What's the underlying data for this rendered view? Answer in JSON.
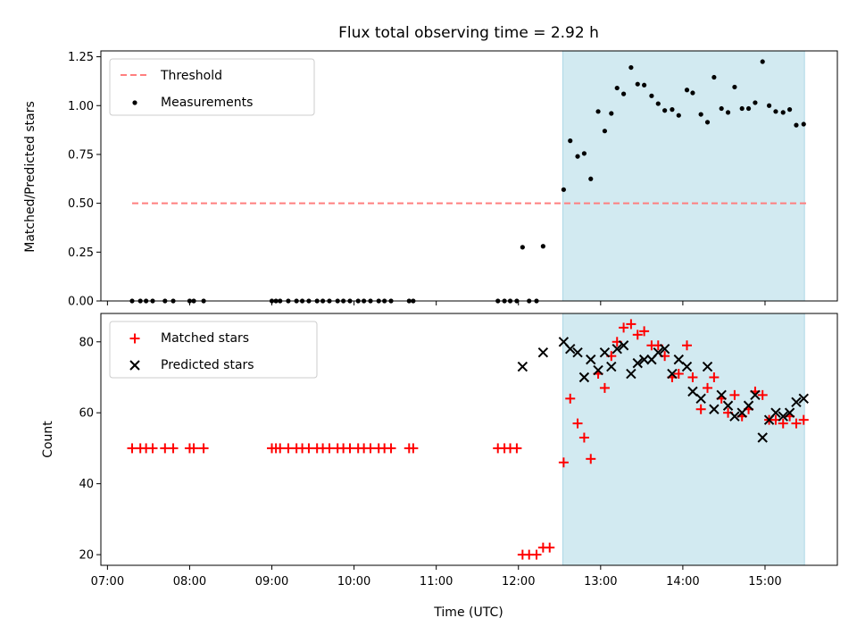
{
  "chart_data": [
    {
      "type": "scatter",
      "title": "Flux total observing time = 2.92 h",
      "xlabel": "",
      "ylabel": "Matched/Predicted stars",
      "ylim": [
        0,
        1.28
      ],
      "x_unit": "hours (UTC)",
      "yticks": [
        "0.00",
        "0.25",
        "0.50",
        "0.75",
        "1.00",
        "1.25"
      ],
      "legend_position": "top-left",
      "threshold": {
        "name": "Threshold",
        "value": 0.5,
        "x_range": [
          7.3,
          15.5
        ],
        "color": "#ff7f7f",
        "style": "dashed"
      },
      "shaded_region": {
        "x_range": [
          12.54,
          15.48
        ],
        "color": "#add8e6"
      },
      "series": [
        {
          "name": "Measurements",
          "color": "#000000",
          "marker": "dot",
          "x": [
            7.3,
            7.4,
            7.47,
            7.55,
            7.7,
            7.8,
            8.0,
            8.05,
            8.17,
            9.0,
            9.05,
            9.1,
            9.2,
            9.3,
            9.37,
            9.45,
            9.55,
            9.62,
            9.7,
            9.8,
            9.87,
            9.95,
            10.05,
            10.12,
            10.2,
            10.3,
            10.37,
            10.45,
            10.67,
            10.72,
            11.75,
            11.83,
            11.9,
            11.98,
            12.05,
            12.13,
            12.22,
            12.3,
            12.55,
            12.63,
            12.72,
            12.8,
            12.88,
            12.97,
            13.05,
            13.13,
            13.2,
            13.28,
            13.37,
            13.45,
            13.53,
            13.62,
            13.7,
            13.78,
            13.87,
            13.95,
            14.05,
            14.12,
            14.22,
            14.3,
            14.38,
            14.47,
            14.55,
            14.63,
            14.72,
            14.8,
            14.88,
            14.97,
            15.05,
            15.13,
            15.22,
            15.3,
            15.38,
            15.47
          ],
          "y": [
            0,
            0,
            0,
            0,
            0,
            0,
            0,
            0,
            0,
            0,
            0,
            0,
            0,
            0,
            0,
            0,
            0,
            0,
            0,
            0,
            0,
            0,
            0,
            0,
            0,
            0,
            0,
            0,
            0,
            0,
            0,
            0,
            0,
            0,
            0.275,
            0,
            0,
            0.28,
            0.57,
            0.82,
            0.74,
            0.755,
            0.625,
            0.97,
            0.87,
            0.96,
            1.09,
            1.06,
            1.195,
            1.11,
            1.105,
            1.05,
            1.01,
            0.975,
            0.98,
            0.95,
            1.08,
            1.065,
            0.955,
            0.915,
            1.145,
            0.985,
            0.965,
            1.095,
            0.985,
            0.985,
            1.015,
            1.225,
            1.0,
            0.97,
            0.965,
            0.98,
            0.9,
            0.905
          ]
        }
      ]
    },
    {
      "type": "scatter",
      "title": "",
      "xlabel": "Time (UTC)",
      "ylabel": "Count",
      "ylim": [
        17,
        88
      ],
      "x_unit": "hours (UTC)",
      "yticks": [
        "20",
        "40",
        "60",
        "80"
      ],
      "xlim": [
        6.92,
        15.88
      ],
      "xticks": [
        "07:00",
        "08:00",
        "09:00",
        "10:00",
        "11:00",
        "12:00",
        "13:00",
        "14:00",
        "15:00"
      ],
      "legend_position": "top-left",
      "shaded_region": {
        "x_range": [
          12.54,
          15.48
        ],
        "color": "#add8e6"
      },
      "series": [
        {
          "name": "Matched stars",
          "color": "#ff0000",
          "marker": "plus",
          "x": [
            7.3,
            7.4,
            7.47,
            7.55,
            7.7,
            7.8,
            8.0,
            8.05,
            8.17,
            9.0,
            9.05,
            9.1,
            9.2,
            9.3,
            9.37,
            9.45,
            9.55,
            9.62,
            9.7,
            9.8,
            9.87,
            9.95,
            10.05,
            10.12,
            10.2,
            10.3,
            10.37,
            10.45,
            10.67,
            10.72,
            11.75,
            11.83,
            11.9,
            11.98,
            12.05,
            12.13,
            12.22,
            12.3,
            12.38,
            12.55,
            12.63,
            12.72,
            12.8,
            12.88,
            12.97,
            13.05,
            13.13,
            13.2,
            13.28,
            13.37,
            13.45,
            13.53,
            13.62,
            13.7,
            13.78,
            13.87,
            13.95,
            14.05,
            14.12,
            14.22,
            14.3,
            14.38,
            14.47,
            14.55,
            14.63,
            14.72,
            14.8,
            14.88,
            14.97,
            15.05,
            15.13,
            15.22,
            15.3,
            15.38,
            15.47
          ],
          "y": [
            50,
            50,
            50,
            50,
            50,
            50,
            50,
            50,
            50,
            50,
            50,
            50,
            50,
            50,
            50,
            50,
            50,
            50,
            50,
            50,
            50,
            50,
            50,
            50,
            50,
            50,
            50,
            50,
            50,
            50,
            50,
            50,
            50,
            50,
            20,
            20,
            20,
            22,
            22,
            46,
            64,
            57,
            53,
            47,
            71,
            67,
            76,
            80,
            84,
            85,
            82,
            83,
            79,
            79,
            76,
            70,
            71,
            79,
            70,
            61,
            67,
            70,
            64,
            60,
            65,
            59,
            61,
            66,
            65,
            58,
            58,
            57,
            59,
            57,
            58
          ]
        },
        {
          "name": "Predicted stars",
          "color": "#000000",
          "marker": "x",
          "x": [
            12.05,
            12.3,
            12.55,
            12.63,
            12.72,
            12.8,
            12.88,
            12.97,
            13.05,
            13.13,
            13.2,
            13.28,
            13.37,
            13.45,
            13.53,
            13.62,
            13.7,
            13.78,
            13.87,
            13.95,
            14.05,
            14.12,
            14.22,
            14.3,
            14.38,
            14.47,
            14.55,
            14.63,
            14.72,
            14.8,
            14.88,
            14.97,
            15.05,
            15.13,
            15.22,
            15.3,
            15.38,
            15.47
          ],
          "y": [
            73,
            77,
            80,
            78,
            77,
            70,
            75,
            72,
            77,
            73,
            78,
            79,
            71,
            74,
            75,
            75,
            77,
            78,
            71,
            75,
            73,
            66,
            64,
            73,
            61,
            65,
            62,
            59,
            60,
            62,
            65,
            53,
            58,
            60,
            59,
            60,
            63,
            64
          ]
        }
      ]
    }
  ]
}
